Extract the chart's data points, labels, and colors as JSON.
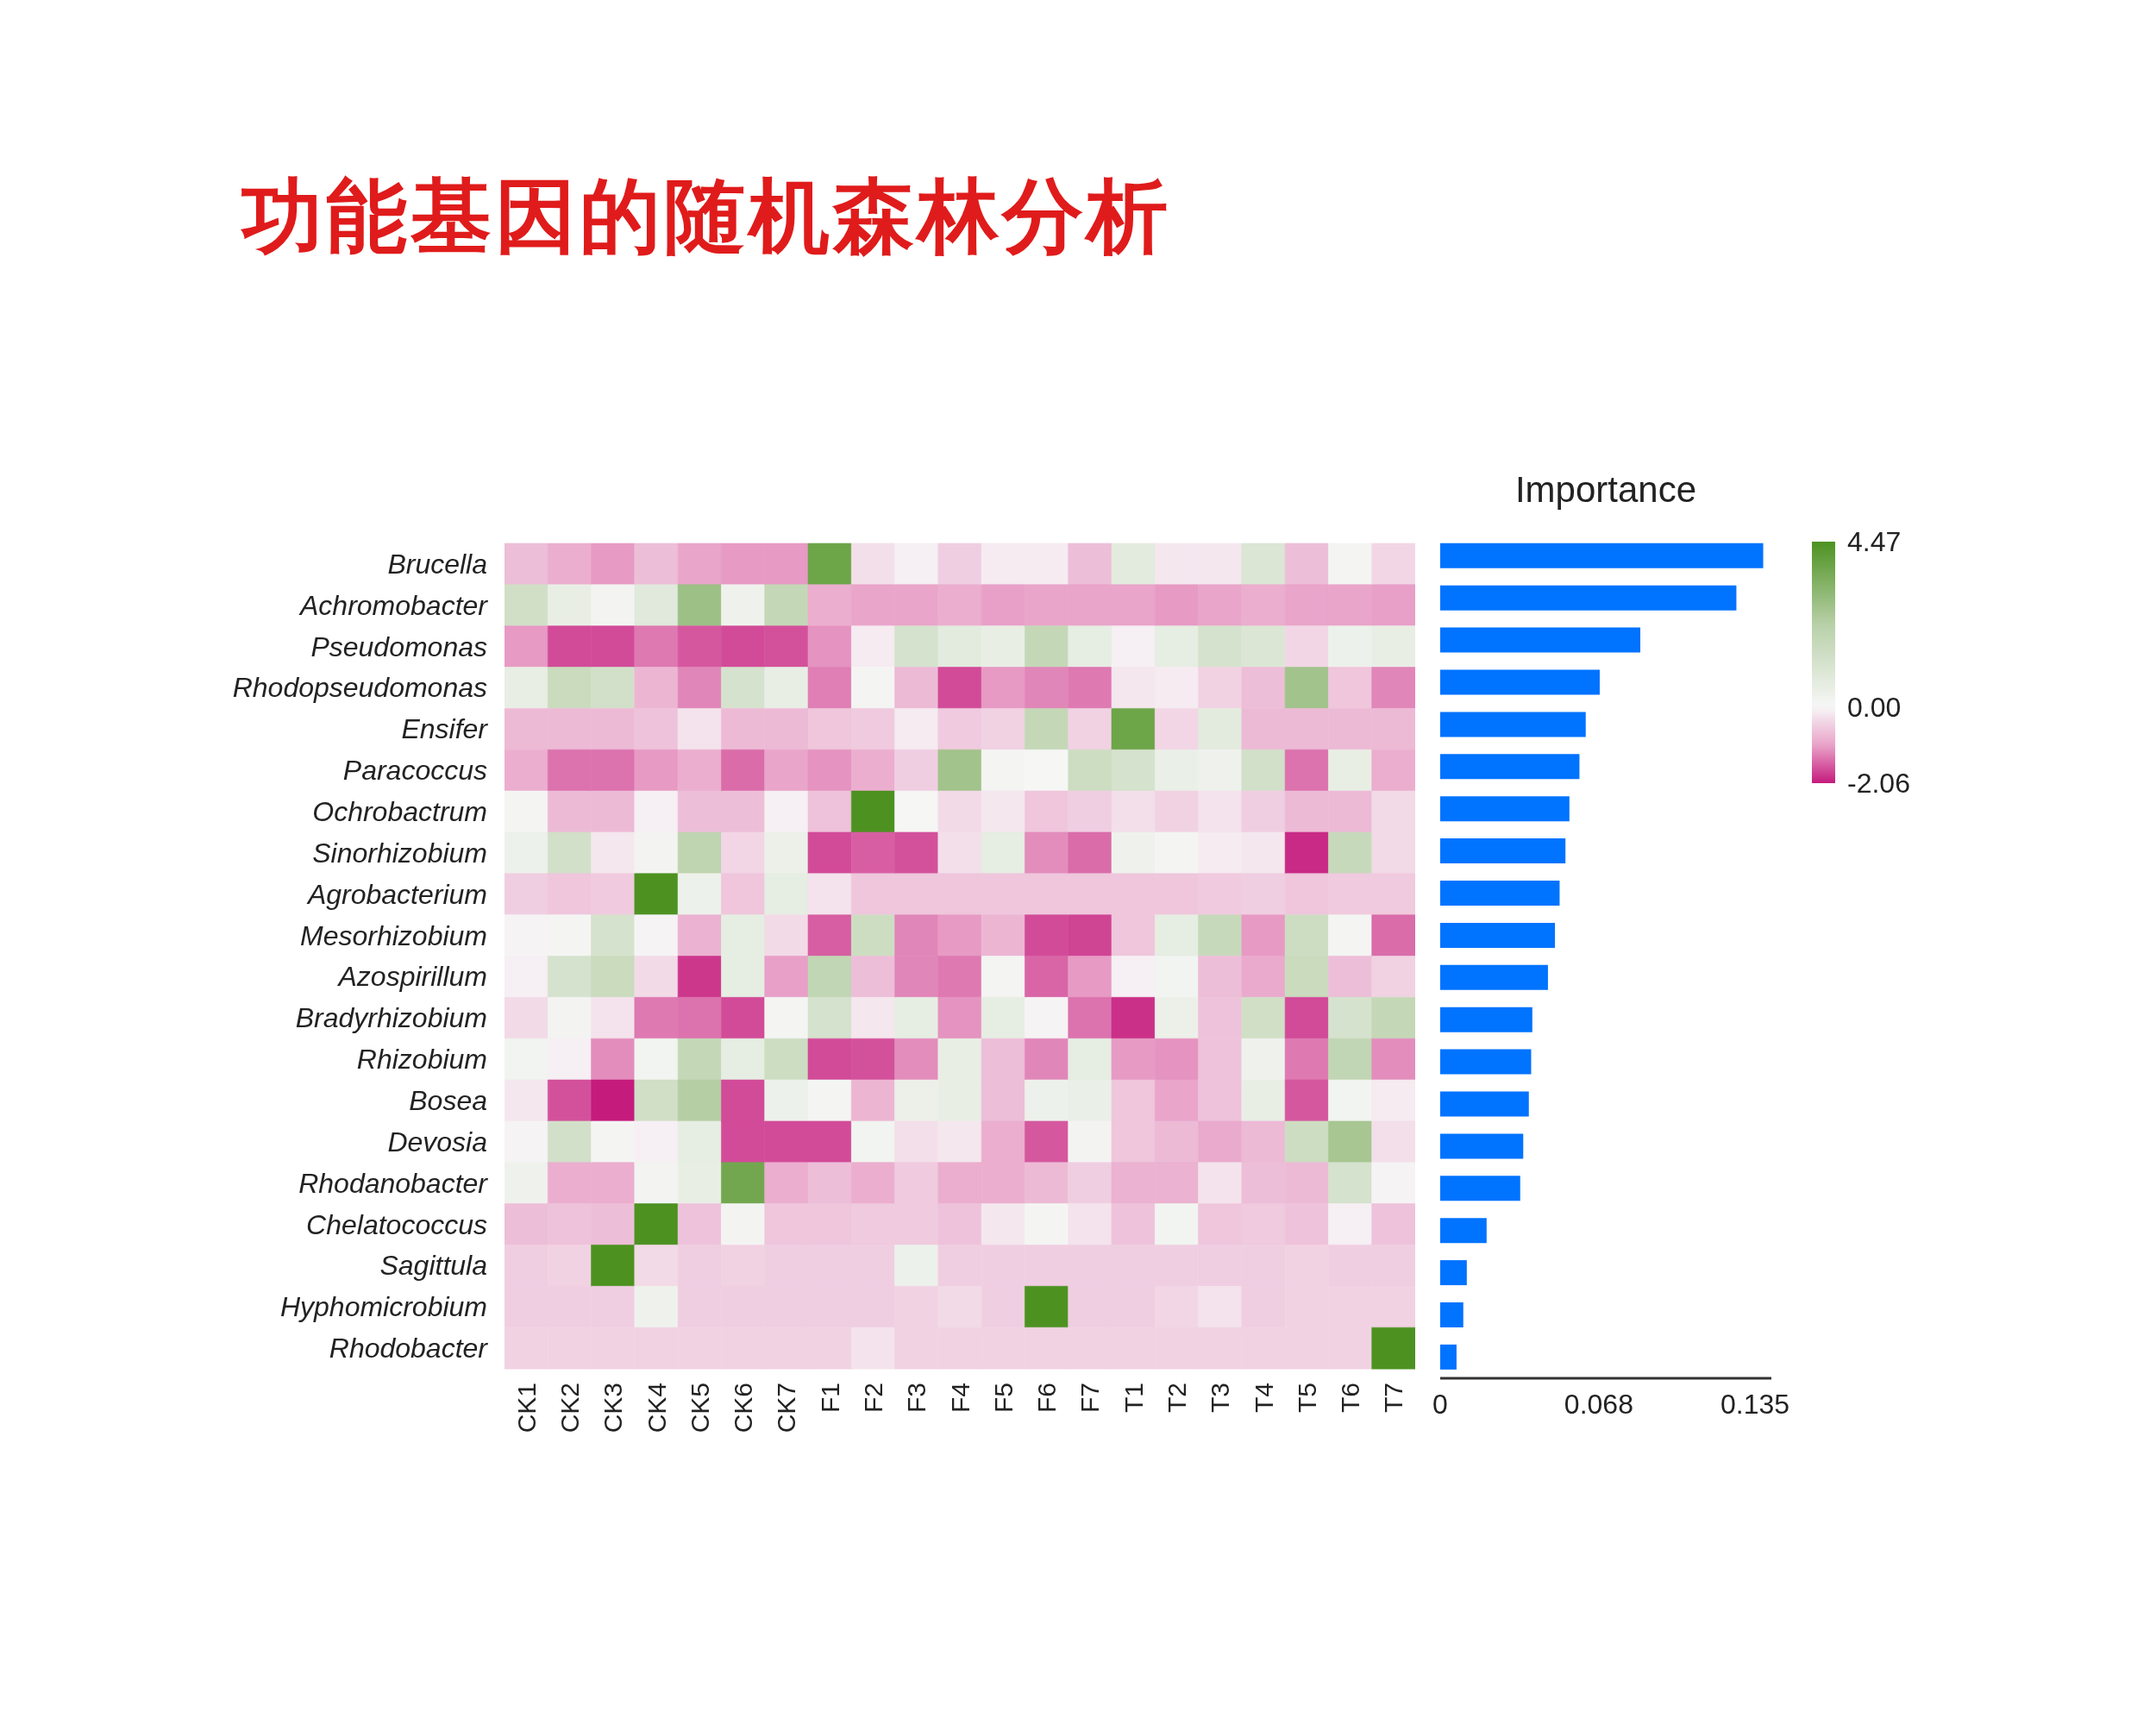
{
  "chart_data": [
    {
      "type": "heatmap",
      "title": "功能基因的随机森林分析",
      "categories": [
        "CK1",
        "CK2",
        "CK3",
        "CK4",
        "CK5",
        "CK6",
        "CK7",
        "F1",
        "F2",
        "F3",
        "F4",
        "F5",
        "F6",
        "F7",
        "T1",
        "T2",
        "T3",
        "T4",
        "T5",
        "T6",
        "T7"
      ],
      "y_categories": [
        "Brucella",
        "Achromobacter",
        "Pseudomonas",
        "Rhodopseudomonas",
        "Ensifer",
        "Paracoccus",
        "Ochrobactrum",
        "Sinorhizobium",
        "Agrobacterium",
        "Mesorhizobium",
        "Azospirillum",
        "Bradyrhizobium",
        "Rhizobium",
        "Bosea",
        "Devosia",
        "Rhodanobacter",
        "Chelatococcus",
        "Sagittula",
        "Hyphomicrobium",
        "Rhodobacter"
      ],
      "cells": [
        [
          -0.7,
          -0.9,
          -1.1,
          -0.7,
          -1.0,
          -1.1,
          -1.1,
          3.8,
          -0.3,
          -0.1,
          -0.5,
          -0.15,
          -0.15,
          -0.7,
          0.7,
          -0.2,
          -0.2,
          1.0,
          -0.7,
          0.1,
          -0.4
        ],
        [
          1.4,
          0.5,
          0.15,
          0.8,
          2.8,
          0.3,
          1.8,
          -0.9,
          -1.0,
          -1.0,
          -0.9,
          -1.05,
          -1.0,
          -1.0,
          -1.0,
          -1.1,
          -1.0,
          -0.9,
          -1.0,
          -1.0,
          -1.05
        ],
        [
          -1.1,
          -1.7,
          -1.7,
          -1.35,
          -1.6,
          -1.7,
          -1.65,
          -1.15,
          -0.15,
          1.2,
          0.7,
          0.5,
          1.8,
          0.6,
          -0.1,
          0.6,
          1.2,
          1.0,
          -0.4,
          0.35,
          0.5
        ],
        [
          0.5,
          1.6,
          1.3,
          -0.8,
          -1.25,
          1.2,
          0.5,
          -1.3,
          0.1,
          -0.75,
          -1.7,
          -1.1,
          -1.25,
          -1.35,
          -0.2,
          -0.15,
          -0.45,
          -0.7,
          2.7,
          -0.6,
          -1.25
        ],
        [
          -0.75,
          -0.75,
          -0.75,
          -0.65,
          -0.25,
          -0.75,
          -0.75,
          -0.6,
          -0.55,
          -0.15,
          -0.55,
          -0.45,
          1.8,
          -0.45,
          3.8,
          -0.4,
          0.7,
          -0.75,
          -0.75,
          -0.75,
          -0.75
        ],
        [
          -0.9,
          -1.4,
          -1.4,
          -1.1,
          -0.9,
          -1.45,
          -1.0,
          -1.15,
          -0.9,
          -0.5,
          2.7,
          0.1,
          0.05,
          1.5,
          1.2,
          0.45,
          0.3,
          1.3,
          -1.4,
          0.5,
          -0.9
        ],
        [
          0.1,
          -0.75,
          -0.75,
          -0.1,
          -0.7,
          -0.7,
          -0.1,
          -0.65,
          4.47,
          0.05,
          -0.35,
          -0.2,
          -0.6,
          -0.5,
          -0.3,
          -0.45,
          -0.25,
          -0.5,
          -0.75,
          -0.75,
          -0.35
        ],
        [
          0.35,
          1.3,
          -0.2,
          0.15,
          2.0,
          -0.4,
          0.4,
          -1.7,
          -1.55,
          -1.65,
          -0.3,
          0.6,
          -1.2,
          -1.45,
          0.3,
          0.1,
          -0.15,
          -0.2,
          -1.95,
          1.7,
          -0.35
        ],
        [
          -0.5,
          -0.6,
          -0.55,
          4.47,
          0.35,
          -0.6,
          0.6,
          -0.25,
          -0.6,
          -0.6,
          -0.6,
          -0.6,
          -0.6,
          -0.6,
          -0.6,
          -0.6,
          -0.55,
          -0.5,
          -0.6,
          -0.55,
          -0.55
        ],
        [
          -0.05,
          0.1,
          1.2,
          -0.05,
          -0.85,
          0.6,
          -0.35,
          -1.55,
          1.5,
          -1.25,
          -1.1,
          -0.8,
          -1.7,
          -1.75,
          -0.6,
          0.6,
          1.7,
          -1.1,
          1.5,
          0.1,
          -1.45
        ],
        [
          -0.1,
          1.2,
          1.6,
          -0.35,
          -1.85,
          0.6,
          -1.05,
          1.9,
          -0.7,
          -1.25,
          -1.35,
          0.1,
          -1.5,
          -1.1,
          -0.1,
          0.2,
          -0.7,
          -0.95,
          1.6,
          -0.7,
          -0.45
        ],
        [
          -0.35,
          0.15,
          -0.25,
          -1.35,
          -1.4,
          -1.7,
          0.1,
          1.2,
          -0.2,
          0.6,
          -1.15,
          0.6,
          -0.05,
          -1.4,
          -1.9,
          0.4,
          -0.65,
          1.4,
          -1.7,
          1.2,
          1.8
        ],
        [
          0.2,
          -0.1,
          -1.2,
          0.2,
          1.8,
          0.6,
          1.5,
          -1.7,
          -1.65,
          -1.2,
          0.5,
          -0.7,
          -1.25,
          0.6,
          -1.1,
          -1.15,
          -0.65,
          0.3,
          -1.35,
          1.9,
          -1.2
        ],
        [
          -0.2,
          -1.65,
          -2.06,
          1.4,
          2.3,
          -1.7,
          0.35,
          0.1,
          -0.8,
          0.4,
          0.5,
          -0.7,
          0.35,
          0.45,
          -0.6,
          -1.0,
          -0.65,
          0.5,
          -1.6,
          0.2,
          -0.15
        ],
        [
          -0.05,
          1.3,
          0.1,
          -0.1,
          0.6,
          -1.7,
          -1.7,
          -1.7,
          0.2,
          -0.3,
          -0.2,
          -0.9,
          -1.6,
          0.15,
          -0.6,
          -0.75,
          -0.95,
          -0.75,
          1.5,
          2.6,
          -0.3
        ],
        [
          0.3,
          -0.9,
          -0.9,
          0.15,
          0.5,
          3.7,
          -0.9,
          -0.7,
          -0.9,
          -0.55,
          -0.9,
          -0.9,
          -0.75,
          -0.5,
          -0.85,
          -0.85,
          -0.25,
          -0.7,
          -0.75,
          1.2,
          -0.05
        ],
        [
          -0.7,
          -0.65,
          -0.7,
          4.47,
          -0.65,
          0.15,
          -0.6,
          -0.6,
          -0.55,
          -0.55,
          -0.65,
          -0.2,
          0.1,
          -0.25,
          -0.65,
          0.2,
          -0.6,
          -0.55,
          -0.65,
          -0.1,
          -0.65
        ],
        [
          -0.5,
          -0.45,
          4.47,
          -0.35,
          -0.5,
          -0.45,
          -0.5,
          -0.5,
          -0.5,
          0.35,
          -0.5,
          -0.5,
          -0.5,
          -0.5,
          -0.5,
          -0.5,
          -0.5,
          -0.5,
          -0.45,
          -0.5,
          -0.5
        ],
        [
          -0.5,
          -0.5,
          -0.5,
          0.3,
          -0.5,
          -0.5,
          -0.5,
          -0.5,
          -0.5,
          -0.45,
          -0.35,
          -0.5,
          4.47,
          -0.5,
          -0.5,
          -0.4,
          -0.25,
          -0.5,
          -0.45,
          -0.45,
          -0.45
        ],
        [
          -0.45,
          -0.45,
          -0.45,
          -0.45,
          -0.45,
          -0.45,
          -0.45,
          -0.45,
          -0.25,
          -0.45,
          -0.45,
          -0.45,
          -0.45,
          -0.45,
          -0.45,
          -0.45,
          -0.45,
          -0.45,
          -0.45,
          -0.45,
          4.47
        ]
      ],
      "clim": [
        -2.06,
        4.47
      ],
      "cticks": [
        -2.06,
        {
          "value": 0,
          "label": "0.00"
        },
        4.47
      ]
    },
    {
      "type": "bar",
      "title": "Importance",
      "orientation": "horizontal",
      "values": [
        0.1385,
        0.127,
        0.0858,
        0.0684,
        0.0624,
        0.0597,
        0.0554,
        0.0537,
        0.0512,
        0.0492,
        0.0462,
        0.0395,
        0.039,
        0.038,
        0.0356,
        0.0343,
        0.0199,
        0.0114,
        0.0099,
        0.007
      ],
      "color": "#0073ff",
      "xlim": [
        0,
        0.142
      ],
      "xticks": [
        0,
        0.068,
        0.135
      ],
      "tick_labels": "x"
    }
  ]
}
